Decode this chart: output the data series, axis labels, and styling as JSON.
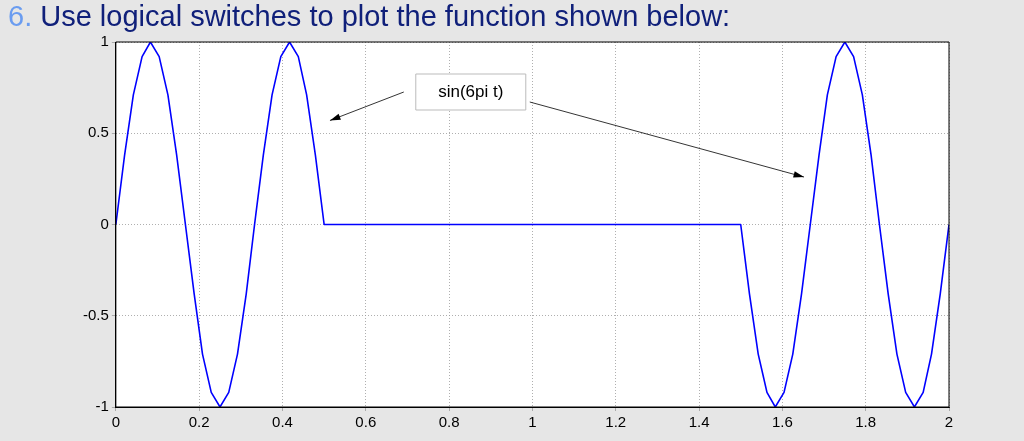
{
  "chart_data": {
    "type": "line",
    "title": "6. Use logical switches to plot the function shown below:",
    "x": [
      0,
      0.021,
      0.042,
      0.063,
      0.083,
      0.104,
      0.125,
      0.146,
      0.167,
      0.188,
      0.208,
      0.229,
      0.25,
      0.271,
      0.292,
      0.313,
      0.333,
      0.354,
      0.375,
      0.396,
      0.417,
      0.438,
      0.458,
      0.479,
      0.5,
      1.5,
      1.521,
      1.542,
      1.563,
      1.583,
      1.604,
      1.625,
      1.646,
      1.667,
      1.688,
      1.708,
      1.729,
      1.75,
      1.771,
      1.792,
      1.813,
      1.833,
      1.854,
      1.875,
      1.896,
      1.917,
      1.938,
      1.958,
      1.979,
      2
    ],
    "series": [
      {
        "color": "#0000ff",
        "values": [
          0,
          0.38,
          0.71,
          0.92,
          1,
          0.92,
          0.71,
          0.38,
          0,
          -0.38,
          -0.71,
          -0.92,
          -1,
          -0.92,
          -0.71,
          -0.38,
          0,
          0.38,
          0.71,
          0.92,
          1,
          0.92,
          0.71,
          0.38,
          0,
          0,
          -0.38,
          -0.71,
          -0.92,
          -1,
          -0.92,
          -0.71,
          -0.38,
          0,
          0.38,
          0.71,
          0.92,
          1,
          0.92,
          0.71,
          0.38,
          0,
          -0.38,
          -0.71,
          -0.92,
          -1,
          -0.92,
          -0.71,
          -0.38,
          0
        ]
      }
    ],
    "xlim": [
      0,
      2
    ],
    "xticks": [
      0,
      0.2,
      0.4,
      0.6,
      0.8,
      1,
      1.2,
      1.4,
      1.6,
      1.8,
      2
    ],
    "ylim": [
      -1,
      1
    ],
    "yticks": [
      -1,
      -0.5,
      0,
      0.5,
      1
    ],
    "grid": true,
    "marker": "none",
    "line_style": "solid",
    "annotations": [
      "sin(6pi t)"
    ]
  }
}
